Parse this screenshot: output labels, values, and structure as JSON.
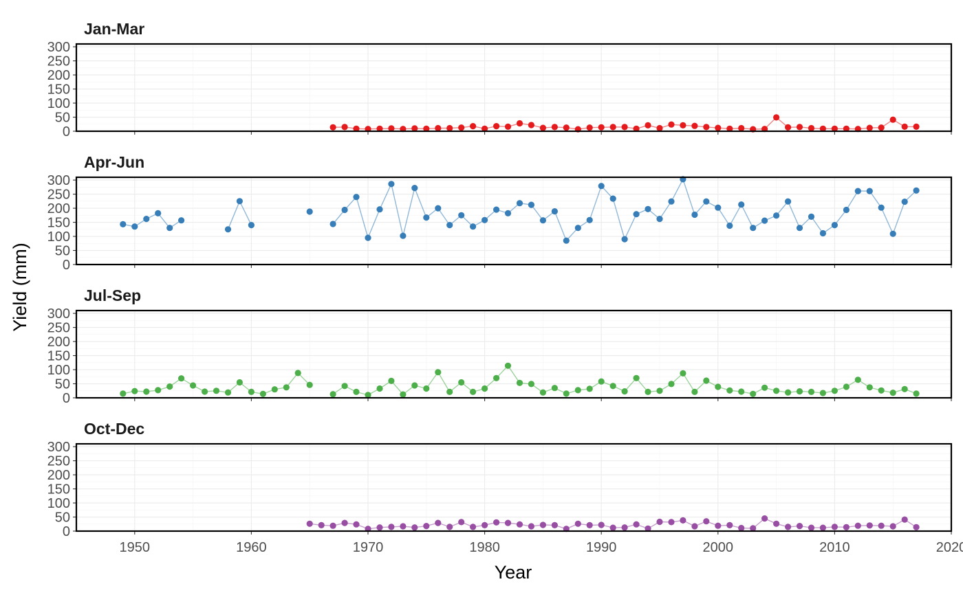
{
  "chart_data": {
    "type": "line",
    "xlabel": "Year",
    "ylabel": "Yield (mm)",
    "xlim": [
      1945,
      2020
    ],
    "ylim": [
      0,
      310
    ],
    "x_ticks": [
      1950,
      1960,
      1970,
      1980,
      1990,
      2000,
      2010,
      2020
    ],
    "y_ticks": [
      0,
      50,
      100,
      150,
      200,
      250,
      300
    ],
    "grid": true,
    "legend": "none",
    "panels": [
      {
        "title": "Jan-Mar",
        "color": "#E41A1C",
        "points": [
          [
            1967,
            14
          ],
          [
            1968,
            15
          ],
          [
            1969,
            9
          ],
          [
            1970,
            8
          ],
          [
            1971,
            9
          ],
          [
            1972,
            10
          ],
          [
            1973,
            8
          ],
          [
            1974,
            10
          ],
          [
            1975,
            9
          ],
          [
            1976,
            11
          ],
          [
            1977,
            11
          ],
          [
            1978,
            13
          ],
          [
            1979,
            18
          ],
          [
            1980,
            9
          ],
          [
            1981,
            18
          ],
          [
            1982,
            16
          ],
          [
            1983,
            28
          ],
          [
            1984,
            22
          ],
          [
            1985,
            12
          ],
          [
            1986,
            15
          ],
          [
            1987,
            13
          ],
          [
            1988,
            7
          ],
          [
            1989,
            13
          ],
          [
            1990,
            14
          ],
          [
            1991,
            15
          ],
          [
            1992,
            15
          ],
          [
            1993,
            9
          ],
          [
            1994,
            21
          ],
          [
            1995,
            11
          ],
          [
            1996,
            24
          ],
          [
            1997,
            21
          ],
          [
            1998,
            19
          ],
          [
            1999,
            15
          ],
          [
            2000,
            12
          ],
          [
            2001,
            9
          ],
          [
            2002,
            11
          ],
          [
            2003,
            7
          ],
          [
            2004,
            8
          ],
          [
            2005,
            49
          ],
          [
            2006,
            14
          ],
          [
            2007,
            15
          ],
          [
            2008,
            11
          ],
          [
            2009,
            9
          ],
          [
            2010,
            9
          ],
          [
            2011,
            9
          ],
          [
            2012,
            8
          ],
          [
            2013,
            12
          ],
          [
            2014,
            13
          ],
          [
            2015,
            41
          ],
          [
            2016,
            16
          ],
          [
            2017,
            16
          ]
        ]
      },
      {
        "title": "Apr-Jun",
        "color": "#377EB8",
        "points": [
          [
            1949,
            143
          ],
          [
            1950,
            135
          ],
          [
            1951,
            162
          ],
          [
            1952,
            182
          ],
          [
            1953,
            130
          ],
          [
            1954,
            157
          ],
          [
            1958,
            125
          ],
          [
            1959,
            225
          ],
          [
            1960,
            140
          ],
          [
            1965,
            188
          ],
          [
            1967,
            144
          ],
          [
            1968,
            194
          ],
          [
            1969,
            240
          ],
          [
            1970,
            95
          ],
          [
            1971,
            196
          ],
          [
            1972,
            286
          ],
          [
            1973,
            102
          ],
          [
            1974,
            272
          ],
          [
            1975,
            167
          ],
          [
            1976,
            200
          ],
          [
            1977,
            140
          ],
          [
            1978,
            175
          ],
          [
            1979,
            135
          ],
          [
            1980,
            158
          ],
          [
            1981,
            195
          ],
          [
            1982,
            182
          ],
          [
            1983,
            218
          ],
          [
            1984,
            212
          ],
          [
            1985,
            157
          ],
          [
            1986,
            189
          ],
          [
            1987,
            85
          ],
          [
            1988,
            130
          ],
          [
            1989,
            158
          ],
          [
            1990,
            279
          ],
          [
            1991,
            234
          ],
          [
            1992,
            90
          ],
          [
            1993,
            179
          ],
          [
            1994,
            197
          ],
          [
            1995,
            162
          ],
          [
            1996,
            224
          ],
          [
            1997,
            303
          ],
          [
            1998,
            177
          ],
          [
            1999,
            224
          ],
          [
            2000,
            202
          ],
          [
            2001,
            138
          ],
          [
            2002,
            213
          ],
          [
            2003,
            130
          ],
          [
            2004,
            156
          ],
          [
            2005,
            174
          ],
          [
            2006,
            224
          ],
          [
            2007,
            130
          ],
          [
            2008,
            170
          ],
          [
            2009,
            111
          ],
          [
            2010,
            140
          ],
          [
            2011,
            194
          ],
          [
            2012,
            261
          ],
          [
            2013,
            261
          ],
          [
            2014,
            202
          ],
          [
            2015,
            109
          ],
          [
            2016,
            223
          ],
          [
            2017,
            263
          ]
        ]
      },
      {
        "title": "Jul-Sep",
        "color": "#4DAF4A",
        "points": [
          [
            1949,
            15
          ],
          [
            1950,
            24
          ],
          [
            1951,
            22
          ],
          [
            1952,
            27
          ],
          [
            1953,
            40
          ],
          [
            1954,
            69
          ],
          [
            1955,
            44
          ],
          [
            1956,
            22
          ],
          [
            1957,
            25
          ],
          [
            1958,
            19
          ],
          [
            1959,
            55
          ],
          [
            1960,
            21
          ],
          [
            1961,
            14
          ],
          [
            1962,
            30
          ],
          [
            1963,
            37
          ],
          [
            1964,
            88
          ],
          [
            1965,
            46
          ],
          [
            1967,
            13
          ],
          [
            1968,
            42
          ],
          [
            1969,
            21
          ],
          [
            1970,
            10
          ],
          [
            1971,
            33
          ],
          [
            1972,
            60
          ],
          [
            1973,
            12
          ],
          [
            1974,
            44
          ],
          [
            1975,
            33
          ],
          [
            1976,
            91
          ],
          [
            1977,
            21
          ],
          [
            1978,
            55
          ],
          [
            1979,
            21
          ],
          [
            1980,
            33
          ],
          [
            1981,
            70
          ],
          [
            1982,
            114
          ],
          [
            1983,
            53
          ],
          [
            1984,
            49
          ],
          [
            1985,
            19
          ],
          [
            1986,
            35
          ],
          [
            1987,
            15
          ],
          [
            1988,
            27
          ],
          [
            1989,
            32
          ],
          [
            1990,
            58
          ],
          [
            1991,
            42
          ],
          [
            1992,
            23
          ],
          [
            1993,
            70
          ],
          [
            1994,
            21
          ],
          [
            1995,
            25
          ],
          [
            1996,
            49
          ],
          [
            1997,
            87
          ],
          [
            1998,
            21
          ],
          [
            1999,
            61
          ],
          [
            2000,
            39
          ],
          [
            2001,
            26
          ],
          [
            2002,
            22
          ],
          [
            2003,
            14
          ],
          [
            2004,
            36
          ],
          [
            2005,
            25
          ],
          [
            2006,
            19
          ],
          [
            2007,
            23
          ],
          [
            2008,
            21
          ],
          [
            2009,
            17
          ],
          [
            2010,
            25
          ],
          [
            2011,
            39
          ],
          [
            2012,
            64
          ],
          [
            2013,
            37
          ],
          [
            2014,
            26
          ],
          [
            2015,
            18
          ],
          [
            2016,
            31
          ],
          [
            2017,
            15
          ]
        ]
      },
      {
        "title": "Oct-Dec",
        "color": "#984EA3",
        "points": [
          [
            1965,
            26
          ],
          [
            1966,
            21
          ],
          [
            1967,
            19
          ],
          [
            1968,
            29
          ],
          [
            1969,
            24
          ],
          [
            1970,
            8
          ],
          [
            1971,
            13
          ],
          [
            1972,
            15
          ],
          [
            1973,
            17
          ],
          [
            1974,
            13
          ],
          [
            1975,
            18
          ],
          [
            1976,
            29
          ],
          [
            1977,
            15
          ],
          [
            1978,
            32
          ],
          [
            1979,
            15
          ],
          [
            1980,
            21
          ],
          [
            1981,
            31
          ],
          [
            1982,
            29
          ],
          [
            1983,
            24
          ],
          [
            1984,
            17
          ],
          [
            1985,
            22
          ],
          [
            1986,
            21
          ],
          [
            1987,
            8
          ],
          [
            1988,
            26
          ],
          [
            1989,
            21
          ],
          [
            1990,
            22
          ],
          [
            1991,
            12
          ],
          [
            1992,
            13
          ],
          [
            1993,
            24
          ],
          [
            1994,
            9
          ],
          [
            1995,
            33
          ],
          [
            1996,
            32
          ],
          [
            1997,
            38
          ],
          [
            1998,
            17
          ],
          [
            1999,
            35
          ],
          [
            2000,
            19
          ],
          [
            2001,
            21
          ],
          [
            2002,
            11
          ],
          [
            2003,
            10
          ],
          [
            2004,
            45
          ],
          [
            2005,
            26
          ],
          [
            2006,
            15
          ],
          [
            2007,
            18
          ],
          [
            2008,
            12
          ],
          [
            2009,
            12
          ],
          [
            2010,
            15
          ],
          [
            2011,
            14
          ],
          [
            2012,
            19
          ],
          [
            2013,
            20
          ],
          [
            2014,
            19
          ],
          [
            2015,
            17
          ],
          [
            2016,
            41
          ],
          [
            2017,
            14
          ]
        ]
      }
    ]
  }
}
